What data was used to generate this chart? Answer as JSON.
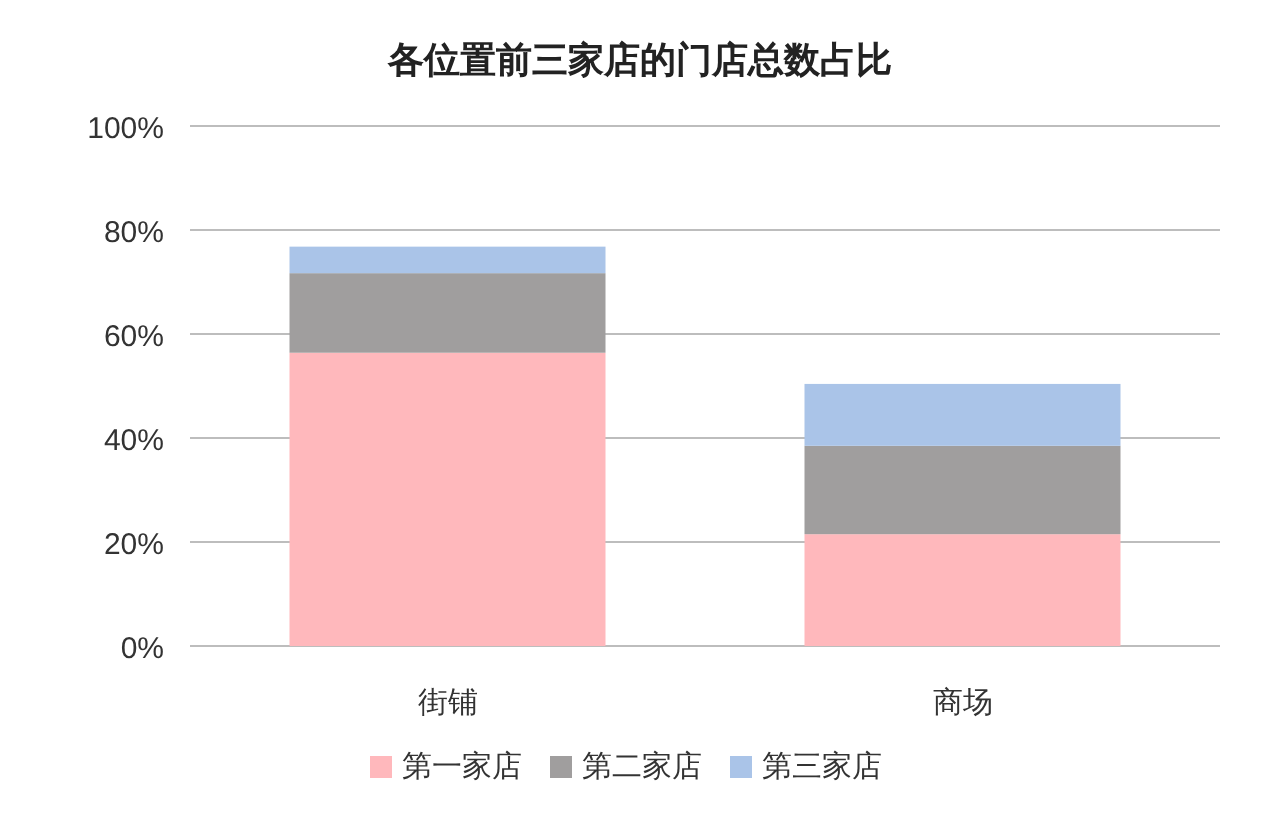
{
  "chart_data": {
    "type": "bar",
    "title": "各位置前三家店的门店总数占比",
    "categories": [
      "街铺",
      "商场"
    ],
    "stacked": true,
    "ylim": [
      0,
      100
    ],
    "yticks": [
      {
        "value": 0,
        "label": "0%"
      },
      {
        "value": 20,
        "label": "20%"
      },
      {
        "value": 40,
        "label": "40%"
      },
      {
        "value": 60,
        "label": "60%"
      },
      {
        "value": 80,
        "label": "80%"
      },
      {
        "value": 100,
        "label": "100%"
      }
    ],
    "grid": "y",
    "legend": "bottom",
    "series": [
      {
        "name": "第一家店",
        "color": "#ffb8bc",
        "values": [
          56.4,
          21.5
        ]
      },
      {
        "name": "第二家店",
        "color": "#a09e9e",
        "values": [
          15.3,
          17.0
        ]
      },
      {
        "name": "第三家店",
        "color": "#aac4e8",
        "values": [
          5.1,
          11.9
        ]
      }
    ]
  }
}
